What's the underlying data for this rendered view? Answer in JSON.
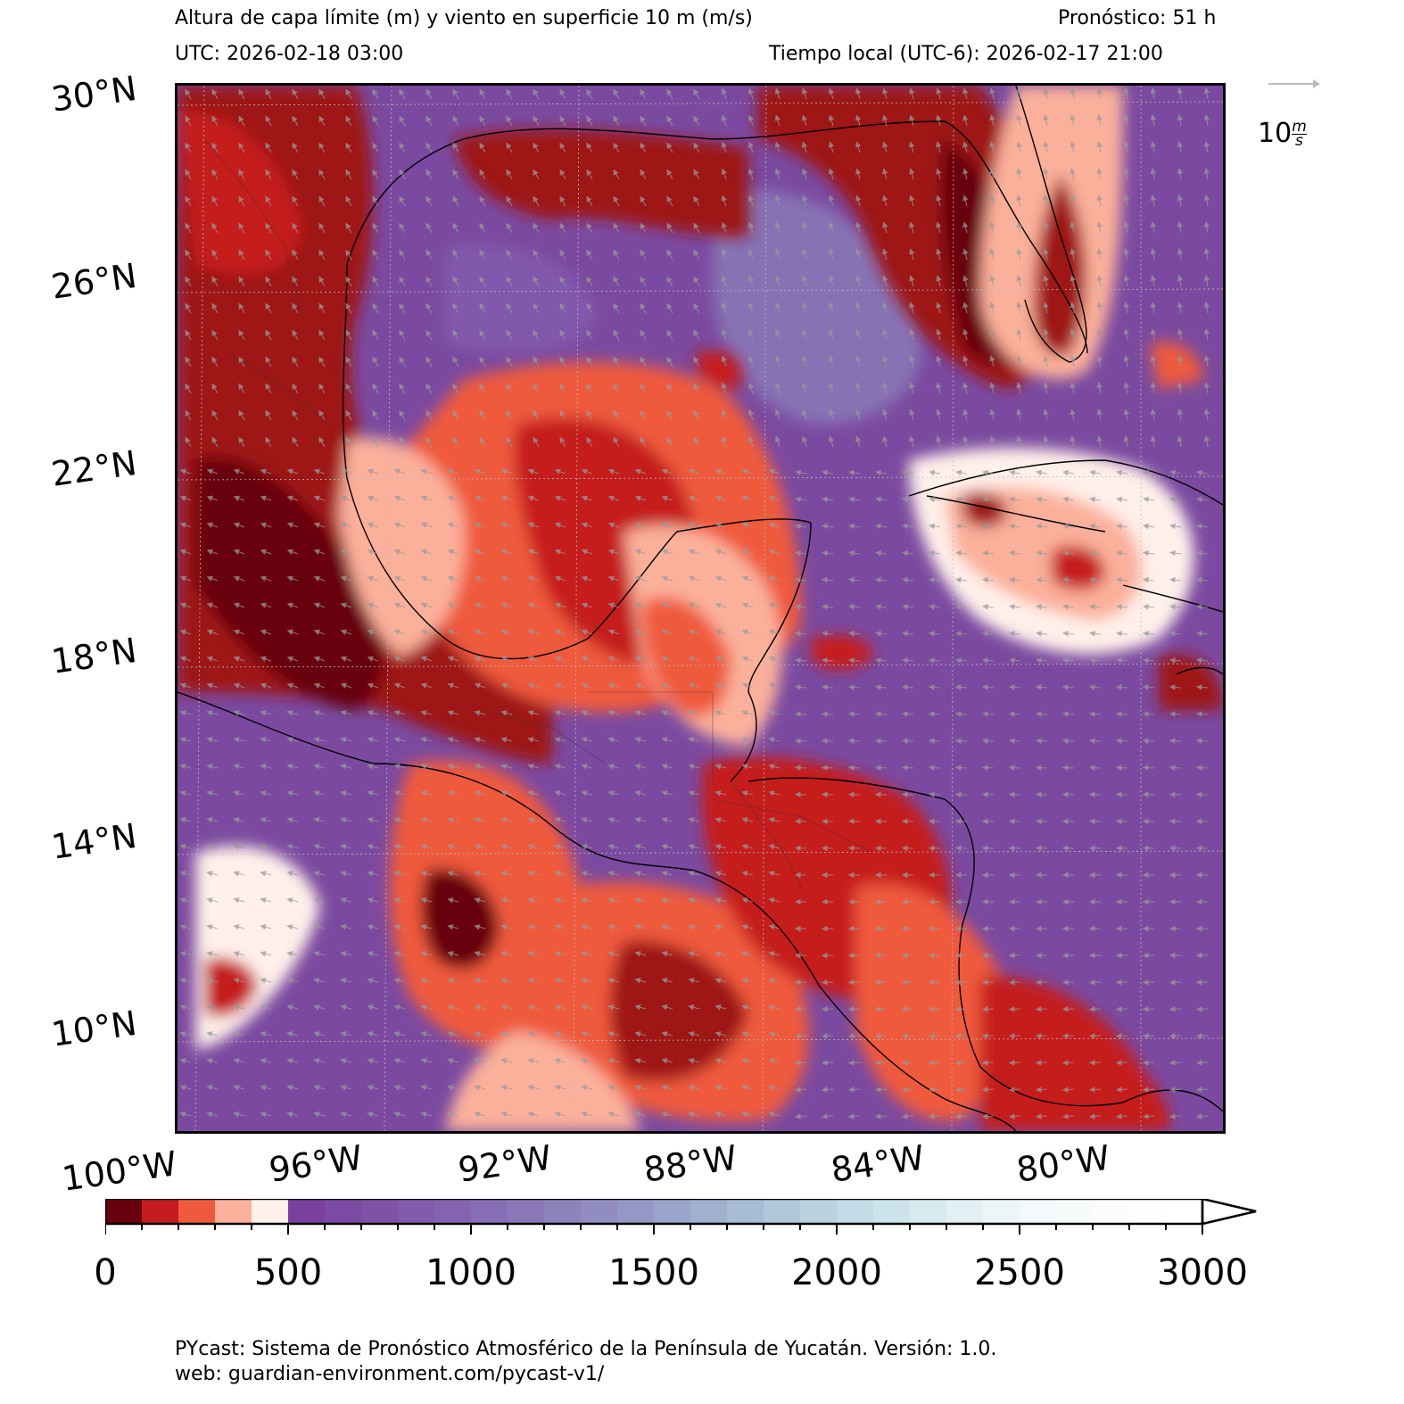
{
  "header": {
    "title": "Altura de capa límite (m) y viento en superficie 10 m (m/s)",
    "forecast": "Pronóstico: 51 h",
    "utc": "UTC:  2026-02-18 03:00",
    "local_time": "Tiempo local (UTC-6): 2026-02-17 21:00"
  },
  "map": {
    "lat_labels": [
      "30°N",
      "26°N",
      "22°N",
      "18°N",
      "14°N",
      "10°N"
    ],
    "lon_labels": [
      "100°W",
      "96°W",
      "92°W",
      "88°W",
      "84°W",
      "80°W"
    ],
    "extent": {
      "lon": [
        -100,
        -77.5
      ],
      "lat": [
        7.8,
        30
      ]
    },
    "field": "Boundary layer height with 10 m wind vectors",
    "wind_reference": {
      "value": 10,
      "label": "10",
      "unit_num": "m",
      "unit_den": "s"
    }
  },
  "colorbar": {
    "ticks": [
      "0",
      "500",
      "1000",
      "1500",
      "2000",
      "2500",
      "3000"
    ],
    "min": 0,
    "max": 3000,
    "step": 100,
    "extend": "max",
    "colors": [
      "#67000d",
      "#c51b1f",
      "#ef5a3c",
      "#fbb09b",
      "#fff0ea",
      "#7b3f9e",
      "#7d4aa3",
      "#7f52a8",
      "#815bac",
      "#8464b0",
      "#886eb4",
      "#8b78b8",
      "#8e82bc",
      "#918cc1",
      "#9597c5",
      "#9aa3ca",
      "#a0b0cf",
      "#a7bcd4",
      "#afc8da",
      "#b8d2e0",
      "#c2dbe6",
      "#cce3eb",
      "#d7eaf0",
      "#e2f0f4",
      "#ecf5f8",
      "#f4f9fb",
      "#f8fbfc",
      "#fbfcfd",
      "#fdfefe",
      "#ffffff"
    ]
  },
  "footer": {
    "line1": "PYcast: Sistema de Pronóstico Atmosférico de la Península de Yucatán. Versión: 1.0.",
    "line2": "web: guardian-environment.com/pycast-v1/"
  }
}
